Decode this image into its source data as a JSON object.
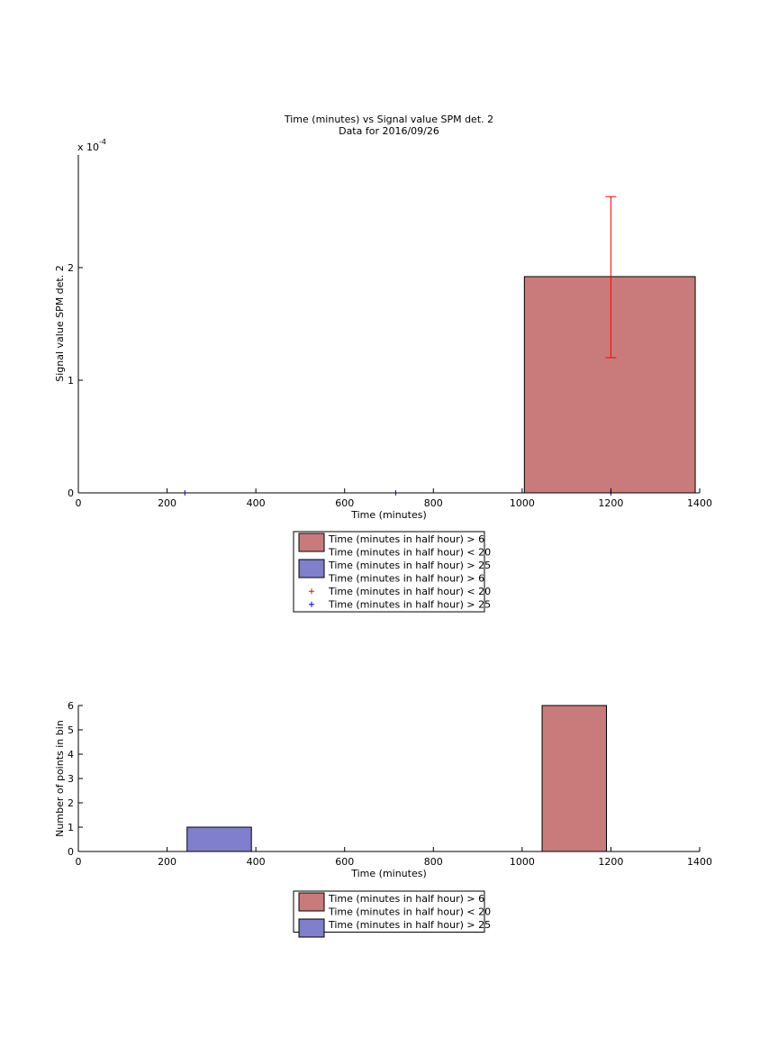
{
  "chart_data": [
    {
      "type": "bar",
      "title": "Time (minutes) vs Signal value SPM det. 2",
      "subtitle": "Data for 2016/09/26",
      "xlabel": "Time (minutes)",
      "ylabel": "Signal value SPM det. 2",
      "exponent_base": "x 10",
      "exponent_power": "-4",
      "xlim": [
        0,
        1400
      ],
      "ylim": [
        0,
        0.0003
      ],
      "xticks": [
        0,
        200,
        400,
        600,
        800,
        1000,
        1200,
        1400
      ],
      "yticks": [
        0,
        0.0001,
        0.0002
      ],
      "ytick_labels": [
        "0",
        "1",
        "2"
      ],
      "bars": [
        {
          "x0": 1005,
          "x1": 1390,
          "value": 0.000192,
          "color": "#c97b7b"
        }
      ],
      "errorbars": [
        {
          "x": 1200,
          "y": 0.000192,
          "low": 0.00012,
          "high": 0.000263,
          "color": "#ff0000"
        }
      ],
      "markers": [
        {
          "x": 240,
          "y": 0,
          "color": "#0000ff",
          "symbol": "+"
        },
        {
          "x": 715,
          "y": 0,
          "color": "#0000ff",
          "symbol": "+"
        },
        {
          "x": 1200,
          "y": 0,
          "color": "#0000ff",
          "symbol": "+"
        }
      ],
      "legend": [
        {
          "label": "Time (minutes in half hour) > 6",
          "kind": "patch",
          "color": "#c97b7b"
        },
        {
          "label": "Time (minutes in half hour) < 20",
          "kind": "none"
        },
        {
          "label": "Time (minutes in half hour) > 25",
          "kind": "patch",
          "color": "#7f7fcc"
        },
        {
          "label": "Time (minutes in half hour) > 6",
          "kind": "none"
        },
        {
          "label": "Time (minutes in half hour) < 20",
          "kind": "marker",
          "color": "#ff0000"
        },
        {
          "label": "Time (minutes in half hour) > 25",
          "kind": "marker",
          "color": "#0000ff"
        }
      ]
    },
    {
      "type": "bar",
      "xlabel": "Time (minutes)",
      "ylabel": "Number of points in bin",
      "xlim": [
        0,
        1400
      ],
      "ylim": [
        0,
        6
      ],
      "xticks": [
        0,
        200,
        400,
        600,
        800,
        1000,
        1200,
        1400
      ],
      "yticks": [
        0,
        1,
        2,
        3,
        4,
        5,
        6
      ],
      "bars": [
        {
          "x0": 245,
          "x1": 390,
          "value": 1,
          "color": "#7f7fcc"
        },
        {
          "x0": 1045,
          "x1": 1190,
          "value": 6,
          "color": "#c97b7b"
        }
      ],
      "legend": [
        {
          "label": "Time (minutes in half hour) > 6",
          "kind": "patch",
          "color": "#c97b7b"
        },
        {
          "label": "Time (minutes in half hour) < 20",
          "kind": "none"
        },
        {
          "label": "Time (minutes in half hour) > 25",
          "kind": "patch",
          "color": "#7f7fcc"
        }
      ]
    }
  ]
}
